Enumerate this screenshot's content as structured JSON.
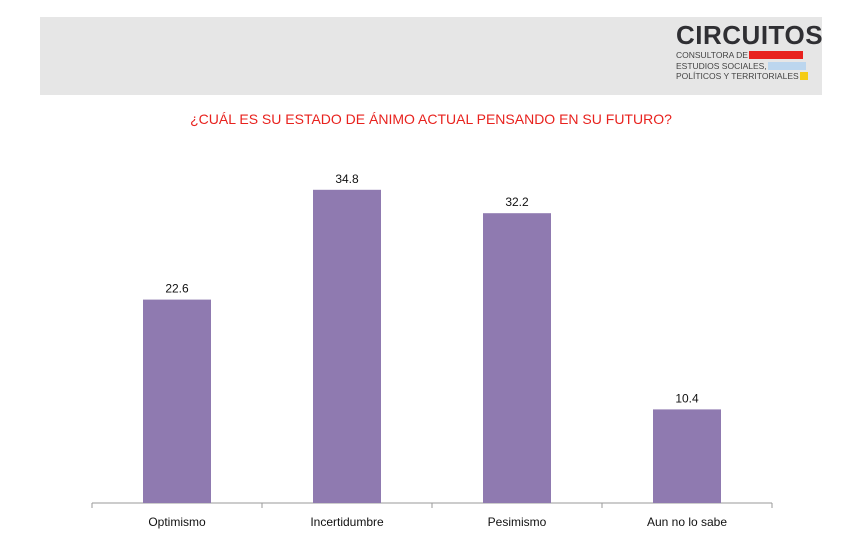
{
  "header": {
    "logo_title": "CIRCUITOS",
    "logo_lines": [
      "CONSULTORA DE",
      "ESTUDIOS SOCIALES,",
      "POLÍTICOS Y TERRITORIALES"
    ],
    "logo_colors": [
      "#e8221e",
      "#bcd6ee",
      "#f5cc16"
    ],
    "band_color": "#e6e6e6"
  },
  "chart_data": {
    "type": "bar",
    "title": "¿CUÁL ES SU ESTADO DE ÁNIMO ACTUAL PENSANDO EN SU FUTURO?",
    "categories": [
      "Optimismo",
      "Incertidumbre",
      "Pesimismo",
      "Aun no lo sabe"
    ],
    "values": [
      22.6,
      34.8,
      32.2,
      10.4
    ],
    "value_labels": [
      "22.6",
      "34.8",
      "32.2",
      "10.4"
    ],
    "bar_color": "#8f7ab0",
    "title_color": "#e8221e",
    "ylim": [
      0,
      40
    ],
    "grid": false,
    "legend": "none"
  }
}
